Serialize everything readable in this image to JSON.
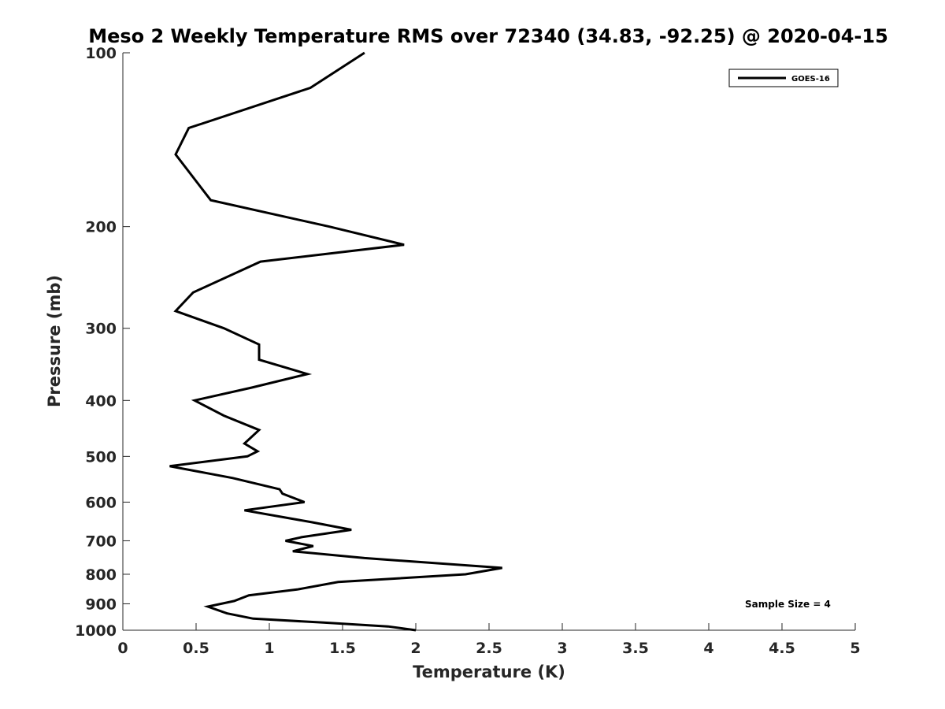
{
  "chart_data": {
    "type": "line",
    "title": "Meso 2 Weekly Temperature RMS over 72340 (34.83, -92.25) @ 2020-04-15",
    "xlabel": "Temperature (K)",
    "ylabel": "Pressure (mb)",
    "xlim": [
      0,
      5
    ],
    "ylim": [
      100,
      1000
    ],
    "y_scale": "log",
    "y_reversed": true,
    "grid": false,
    "legend_position": "top-right",
    "x_ticks": [
      "0",
      "0.5",
      "1",
      "1.5",
      "2",
      "2.5",
      "3",
      "3.5",
      "4",
      "4.5",
      "5"
    ],
    "y_ticks": [
      "100",
      "200",
      "300",
      "400",
      "500",
      "600",
      "700",
      "800",
      "900",
      "1000"
    ],
    "annotation": "Sample Size = 4",
    "series": [
      {
        "name": "GOES-16",
        "color": "#000000",
        "points": [
          [
            1.65,
            100
          ],
          [
            1.28,
            115
          ],
          [
            0.45,
            135
          ],
          [
            0.36,
            150
          ],
          [
            0.6,
            180
          ],
          [
            1.41,
            200
          ],
          [
            1.92,
            215
          ],
          [
            0.94,
            230
          ],
          [
            0.48,
            260
          ],
          [
            0.36,
            280
          ],
          [
            0.69,
            300
          ],
          [
            0.93,
            320
          ],
          [
            0.93,
            340
          ],
          [
            1.26,
            360
          ],
          [
            0.88,
            380
          ],
          [
            0.49,
            400
          ],
          [
            0.69,
            425
          ],
          [
            0.93,
            450
          ],
          [
            0.83,
            475
          ],
          [
            0.92,
            490
          ],
          [
            0.85,
            500
          ],
          [
            0.32,
            520
          ],
          [
            0.75,
            545
          ],
          [
            1.07,
            570
          ],
          [
            1.09,
            580
          ],
          [
            1.24,
            600
          ],
          [
            0.83,
            620
          ],
          [
            1.29,
            650
          ],
          [
            1.56,
            670
          ],
          [
            1.22,
            690
          ],
          [
            1.11,
            700
          ],
          [
            1.3,
            715
          ],
          [
            1.16,
            730
          ],
          [
            1.65,
            750
          ],
          [
            2.59,
            780
          ],
          [
            2.34,
            800
          ],
          [
            1.47,
            825
          ],
          [
            1.19,
            850
          ],
          [
            0.86,
            870
          ],
          [
            0.76,
            890
          ],
          [
            0.58,
            910
          ],
          [
            0.71,
            935
          ],
          [
            0.89,
            955
          ],
          [
            1.37,
            970
          ],
          [
            1.81,
            985
          ],
          [
            2.0,
            1000
          ]
        ]
      }
    ]
  }
}
